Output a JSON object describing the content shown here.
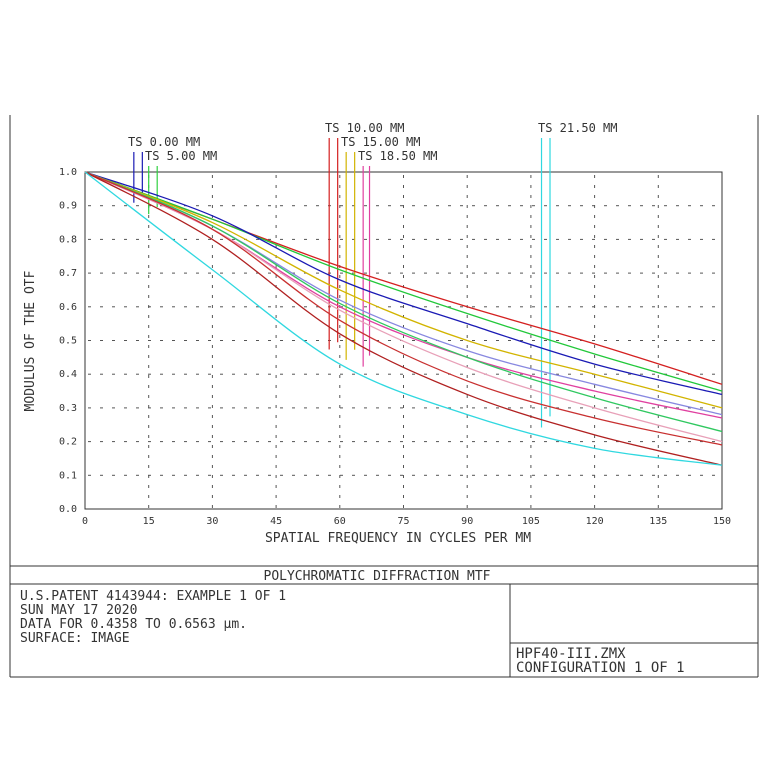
{
  "chart_data": {
    "type": "line",
    "title": "POLYCHROMATIC DIFFRACTION MTF",
    "xlabel": "SPATIAL FREQUENCY IN CYCLES PER MM",
    "ylabel": "MODULUS OF THE OTF",
    "xlim": [
      0,
      150
    ],
    "ylim": [
      0,
      1.0
    ],
    "xticks": [
      "0",
      "15",
      "30",
      "45",
      "60",
      "75",
      "90",
      "105",
      "120",
      "135",
      "150"
    ],
    "yticks": [
      "0.0",
      "0.1",
      "0.2",
      "0.3",
      "0.4",
      "0.5",
      "0.6",
      "0.7",
      "0.8",
      "0.9",
      "1.0"
    ],
    "grid": true,
    "field_labels": [
      "TS 0.00 MM",
      "TS 5.00 MM",
      "TS 10.00 MM",
      "TS 15.00 MM",
      "TS 18.50 MM",
      "TS 21.50 MM"
    ],
    "series": [
      {
        "color": "#d42020",
        "x": [
          0,
          30,
          60,
          90,
          120,
          150
        ],
        "y": [
          1.0,
          0.86,
          0.72,
          0.6,
          0.49,
          0.37
        ]
      },
      {
        "color": "#22c83a",
        "x": [
          0,
          30,
          60,
          90,
          120,
          150
        ],
        "y": [
          1.0,
          0.86,
          0.71,
          0.58,
          0.46,
          0.35
        ]
      },
      {
        "color": "#1a1ab4",
        "x": [
          0,
          30,
          60,
          90,
          120,
          150
        ],
        "y": [
          1.0,
          0.87,
          0.68,
          0.55,
          0.43,
          0.34
        ]
      },
      {
        "color": "#d2b400",
        "x": [
          0,
          30,
          60,
          90,
          120,
          150
        ],
        "y": [
          1.0,
          0.85,
          0.65,
          0.5,
          0.4,
          0.3
        ]
      },
      {
        "color": "#8888e0",
        "x": [
          0,
          30,
          60,
          90,
          120,
          150
        ],
        "y": [
          1.0,
          0.84,
          0.62,
          0.47,
          0.37,
          0.28
        ]
      },
      {
        "color": "#e040a0",
        "x": [
          0,
          30,
          60,
          90,
          120,
          150
        ],
        "y": [
          1.0,
          0.83,
          0.6,
          0.45,
          0.35,
          0.27
        ]
      },
      {
        "color": "#30c860",
        "x": [
          0,
          30,
          60,
          90,
          120,
          150
        ],
        "y": [
          1.0,
          0.84,
          0.61,
          0.45,
          0.33,
          0.23
        ]
      },
      {
        "color": "#e8a0b8",
        "x": [
          0,
          30,
          60,
          90,
          120,
          150
        ],
        "y": [
          1.0,
          0.83,
          0.59,
          0.42,
          0.3,
          0.2
        ]
      },
      {
        "color": "#c83030",
        "x": [
          0,
          30,
          60,
          90,
          120,
          150
        ],
        "y": [
          1.0,
          0.83,
          0.56,
          0.38,
          0.27,
          0.19
        ]
      },
      {
        "color": "#b02020",
        "x": [
          0,
          30,
          60,
          90,
          120,
          150
        ],
        "y": [
          1.0,
          0.8,
          0.52,
          0.34,
          0.22,
          0.13
        ]
      },
      {
        "color": "#30d8e0",
        "x": [
          0,
          30,
          60,
          90,
          120,
          150
        ],
        "y": [
          1.0,
          0.71,
          0.43,
          0.28,
          0.18,
          0.13
        ]
      }
    ],
    "markers": [
      {
        "x": 11.5,
        "color": "#1a1ab4"
      },
      {
        "x": 13.5,
        "color": "#1a1ab4"
      },
      {
        "x": 15.0,
        "color": "#30d040"
      },
      {
        "x": 17.0,
        "color": "#30d040"
      },
      {
        "x": 57.5,
        "color": "#d42020"
      },
      {
        "x": 59.5,
        "color": "#d42020"
      },
      {
        "x": 61.5,
        "color": "#d2b400"
      },
      {
        "x": 63.5,
        "color": "#d2b400"
      },
      {
        "x": 65.5,
        "color": "#e040a0"
      },
      {
        "x": 67.0,
        "color": "#e040a0"
      },
      {
        "x": 107.5,
        "color": "#30d8e0"
      },
      {
        "x": 109.5,
        "color": "#30d8e0"
      }
    ]
  },
  "info": {
    "line1": "U.S.PATENT 4143944: EXAMPLE 1 OF 1",
    "line2": "SUN MAY 17 2020",
    "line3": "DATA FOR 0.4358 TO 0.6563 µm.",
    "line4": "SURFACE: IMAGE"
  },
  "file": {
    "name": "HPF40-III.ZMX",
    "config": "CONFIGURATION 1 OF 1"
  }
}
